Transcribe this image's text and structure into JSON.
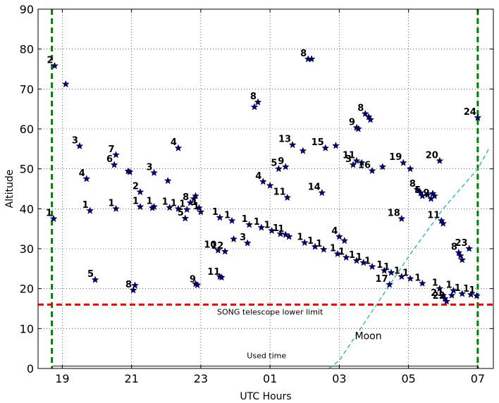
{
  "chart_data": {
    "type": "scatter",
    "title": "",
    "xlabel": "UTC Hours",
    "ylabel": "Altitude",
    "xlim": [
      18.3,
      31.45
    ],
    "ylim": [
      0,
      90
    ],
    "xticks": [
      {
        "value": 19,
        "label": "19"
      },
      {
        "value": 21,
        "label": "21"
      },
      {
        "value": 23,
        "label": "23"
      },
      {
        "value": 25,
        "label": "01"
      },
      {
        "value": 27,
        "label": "03"
      },
      {
        "value": 29,
        "label": "05"
      },
      {
        "value": 31,
        "label": "07"
      }
    ],
    "yticks": [
      0,
      10,
      20,
      30,
      40,
      50,
      60,
      70,
      80,
      90
    ],
    "grid": true,
    "lines": [
      {
        "kind": "vertical",
        "x": 18.7,
        "color": "#008000",
        "style": "dashed"
      },
      {
        "kind": "vertical",
        "x": 31.0,
        "color": "#008000",
        "style": "dashed"
      },
      {
        "kind": "horizontal",
        "y": 16,
        "color": "#ff0000",
        "style": "dashed",
        "label": "SONG telescope lower limit",
        "label_x": 25.0,
        "label_y": 13.5
      },
      {
        "kind": "horizontal",
        "y": 0.6,
        "color": "#555555",
        "style": "solid",
        "x0": 18.7,
        "x1": 31.0,
        "label": "Used time",
        "label_x": 24.9,
        "label_y": 2.6
      }
    ],
    "moon": {
      "label": "Moon",
      "color": "#20b2aa",
      "points": [
        [
          26.7,
          0
        ],
        [
          27.0,
          2
        ],
        [
          28.0,
          15
        ],
        [
          29.0,
          28
        ],
        [
          30.0,
          40
        ],
        [
          31.0,
          50
        ],
        [
          31.35,
          55.5
        ]
      ],
      "label_x": 27.45,
      "label_y": 8.2
    },
    "star_color": "#00008b",
    "label_color": "#000000",
    "points": [
      {
        "x": 18.78,
        "y": 75.8,
        "label": "2"
      },
      {
        "x": 19.1,
        "y": 71.2,
        "label": ""
      },
      {
        "x": 19.5,
        "y": 55.7,
        "label": "3"
      },
      {
        "x": 19.7,
        "y": 47.5,
        "label": "4"
      },
      {
        "x": 18.75,
        "y": 37.5,
        "label": "1"
      },
      {
        "x": 19.8,
        "y": 39.5,
        "label": "1"
      },
      {
        "x": 19.95,
        "y": 22.2,
        "label": "5"
      },
      {
        "x": 20.55,
        "y": 53.5,
        "label": "7"
      },
      {
        "x": 20.5,
        "y": 51.0,
        "label": "6"
      },
      {
        "x": 20.9,
        "y": 49.4,
        "label": ""
      },
      {
        "x": 20.95,
        "y": 49.2,
        "label": ""
      },
      {
        "x": 21.25,
        "y": 44.2,
        "label": "2"
      },
      {
        "x": 20.55,
        "y": 40.0,
        "label": "1"
      },
      {
        "x": 21.25,
        "y": 40.5,
        "label": "1"
      },
      {
        "x": 21.65,
        "y": 49.0,
        "label": "3"
      },
      {
        "x": 21.6,
        "y": 40.2,
        "label": ""
      },
      {
        "x": 21.65,
        "y": 40.5,
        "label": "1"
      },
      {
        "x": 22.05,
        "y": 47.0,
        "label": ""
      },
      {
        "x": 22.35,
        "y": 55.2,
        "label": "4"
      },
      {
        "x": 22.1,
        "y": 40.3,
        "label": "1"
      },
      {
        "x": 22.35,
        "y": 40.0,
        "label": "1"
      },
      {
        "x": 22.55,
        "y": 37.6,
        "label": "5"
      },
      {
        "x": 22.6,
        "y": 39.8,
        "label": "1"
      },
      {
        "x": 22.7,
        "y": 41.5,
        "label": "8"
      },
      {
        "x": 22.8,
        "y": 42.5,
        "label": ""
      },
      {
        "x": 22.85,
        "y": 43.2,
        "label": ""
      },
      {
        "x": 22.95,
        "y": 40.2,
        "label": "1"
      },
      {
        "x": 23.0,
        "y": 39.2,
        "label": "1"
      },
      {
        "x": 21.1,
        "y": 20.8,
        "label": ""
      },
      {
        "x": 21.05,
        "y": 19.6,
        "label": "8"
      },
      {
        "x": 22.85,
        "y": 21.2,
        "label": ""
      },
      {
        "x": 22.9,
        "y": 20.9,
        "label": "9"
      },
      {
        "x": 23.55,
        "y": 37.8,
        "label": "1"
      },
      {
        "x": 23.9,
        "y": 37.0,
        "label": "1"
      },
      {
        "x": 23.5,
        "y": 29.6,
        "label": "10"
      },
      {
        "x": 23.7,
        "y": 29.3,
        "label": "12"
      },
      {
        "x": 23.95,
        "y": 32.4,
        "label": ""
      },
      {
        "x": 23.55,
        "y": 23.0,
        "label": ""
      },
      {
        "x": 23.6,
        "y": 22.8,
        "label": "11"
      },
      {
        "x": 24.35,
        "y": 31.4,
        "label": "3"
      },
      {
        "x": 24.4,
        "y": 36.0,
        "label": "1"
      },
      {
        "x": 24.75,
        "y": 35.3,
        "label": "1"
      },
      {
        "x": 24.55,
        "y": 65.5,
        "label": ""
      },
      {
        "x": 24.65,
        "y": 66.7,
        "label": "8"
      },
      {
        "x": 24.8,
        "y": 46.8,
        "label": "4"
      },
      {
        "x": 25.0,
        "y": 45.8,
        "label": ""
      },
      {
        "x": 25.05,
        "y": 34.5,
        "label": "1"
      },
      {
        "x": 25.3,
        "y": 33.7,
        "label": "1"
      },
      {
        "x": 25.45,
        "y": 33.5,
        "label": "1"
      },
      {
        "x": 25.55,
        "y": 33.0,
        "label": ""
      },
      {
        "x": 25.25,
        "y": 50.0,
        "label": "5"
      },
      {
        "x": 25.45,
        "y": 50.5,
        "label": "9"
      },
      {
        "x": 25.5,
        "y": 42.8,
        "label": "11"
      },
      {
        "x": 25.65,
        "y": 56.0,
        "label": "13"
      },
      {
        "x": 25.95,
        "y": 54.5,
        "label": ""
      },
      {
        "x": 26.0,
        "y": 31.5,
        "label": "1"
      },
      {
        "x": 26.3,
        "y": 30.5,
        "label": "1"
      },
      {
        "x": 26.55,
        "y": 29.8,
        "label": "1"
      },
      {
        "x": 26.1,
        "y": 77.5,
        "label": "8"
      },
      {
        "x": 26.2,
        "y": 77.5,
        "label": ""
      },
      {
        "x": 26.5,
        "y": 44.0,
        "label": "14"
      },
      {
        "x": 26.6,
        "y": 55.2,
        "label": "15"
      },
      {
        "x": 26.9,
        "y": 55.8,
        "label": ""
      },
      {
        "x": 26.95,
        "y": 28.7,
        "label": "1"
      },
      {
        "x": 27.0,
        "y": 33.0,
        "label": "4"
      },
      {
        "x": 27.15,
        "y": 32.0,
        "label": ""
      },
      {
        "x": 27.2,
        "y": 27.8,
        "label": "1"
      },
      {
        "x": 27.4,
        "y": 51.0,
        "label": "3"
      },
      {
        "x": 27.5,
        "y": 27.0,
        "label": "1"
      },
      {
        "x": 27.5,
        "y": 52.0,
        "label": "11"
      },
      {
        "x": 27.65,
        "y": 51.5,
        "label": ""
      },
      {
        "x": 27.5,
        "y": 60.3,
        "label": "9"
      },
      {
        "x": 27.55,
        "y": 60.0,
        "label": ""
      },
      {
        "x": 27.7,
        "y": 26.5,
        "label": "1"
      },
      {
        "x": 27.75,
        "y": 63.8,
        "label": "8"
      },
      {
        "x": 27.85,
        "y": 63.0,
        "label": ""
      },
      {
        "x": 27.9,
        "y": 62.3,
        "label": ""
      },
      {
        "x": 27.95,
        "y": 25.5,
        "label": "1"
      },
      {
        "x": 27.95,
        "y": 49.5,
        "label": "16"
      },
      {
        "x": 28.25,
        "y": 50.5,
        "label": ""
      },
      {
        "x": 28.3,
        "y": 24.5,
        "label": "1"
      },
      {
        "x": 28.45,
        "y": 21.0,
        "label": "17"
      },
      {
        "x": 28.5,
        "y": 24.0,
        "label": "1"
      },
      {
        "x": 28.8,
        "y": 23.0,
        "label": "1"
      },
      {
        "x": 28.8,
        "y": 37.5,
        "label": "18"
      },
      {
        "x": 28.85,
        "y": 51.5,
        "label": "19"
      },
      {
        "x": 29.05,
        "y": 50.0,
        "label": ""
      },
      {
        "x": 29.05,
        "y": 22.5,
        "label": "1"
      },
      {
        "x": 29.4,
        "y": 21.3,
        "label": "1"
      },
      {
        "x": 29.25,
        "y": 44.8,
        "label": "8"
      },
      {
        "x": 29.35,
        "y": 44.0,
        "label": ""
      },
      {
        "x": 29.4,
        "y": 43.2,
        "label": "5"
      },
      {
        "x": 29.55,
        "y": 43.5,
        "label": ""
      },
      {
        "x": 29.65,
        "y": 42.5,
        "label": "9"
      },
      {
        "x": 29.7,
        "y": 43.8,
        "label": ""
      },
      {
        "x": 29.75,
        "y": 43.2,
        "label": ""
      },
      {
        "x": 29.9,
        "y": 52.0,
        "label": "20"
      },
      {
        "x": 29.95,
        "y": 37.0,
        "label": "11"
      },
      {
        "x": 30.0,
        "y": 36.3,
        "label": ""
      },
      {
        "x": 29.9,
        "y": 20.0,
        "label": "1"
      },
      {
        "x": 30.0,
        "y": 18.3,
        "label": ""
      },
      {
        "x": 30.05,
        "y": 17.5,
        "label": "21"
      },
      {
        "x": 30.1,
        "y": 16.8,
        "label": "22"
      },
      {
        "x": 30.25,
        "y": 18.3,
        "label": ""
      },
      {
        "x": 30.3,
        "y": 19.5,
        "label": "1"
      },
      {
        "x": 30.45,
        "y": 29.0,
        "label": "8"
      },
      {
        "x": 30.5,
        "y": 28.2,
        "label": ""
      },
      {
        "x": 30.55,
        "y": 27.2,
        "label": ""
      },
      {
        "x": 30.55,
        "y": 18.7,
        "label": "1"
      },
      {
        "x": 30.75,
        "y": 30.0,
        "label": "23"
      },
      {
        "x": 30.8,
        "y": 18.5,
        "label": "1"
      },
      {
        "x": 30.97,
        "y": 18.2,
        "label": "1"
      },
      {
        "x": 31.0,
        "y": 62.8,
        "label": "24"
      }
    ]
  }
}
